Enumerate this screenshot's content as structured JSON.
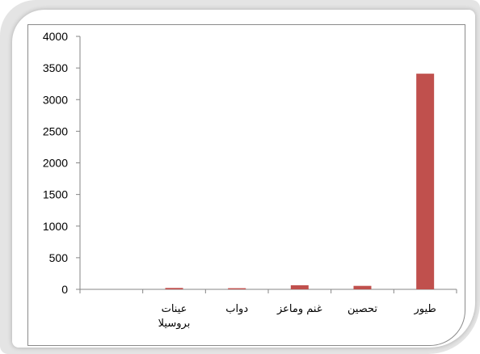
{
  "chart_data": {
    "type": "bar",
    "categories": [
      "طيور",
      "تحصين",
      "غنم وماعز",
      "دواب",
      "عينات\nبروسيلا",
      ""
    ],
    "values": [
      3410,
      55,
      65,
      18,
      22,
      null
    ],
    "title": "",
    "xlabel": "",
    "ylabel": "",
    "ylim": [
      0,
      4000
    ],
    "yticks": [
      0,
      500,
      1000,
      1500,
      2000,
      2500,
      3000,
      3500,
      4000
    ],
    "grid": false,
    "legend": "none",
    "bar_color": "#c0504d",
    "axis_direction": "right-to-left"
  }
}
